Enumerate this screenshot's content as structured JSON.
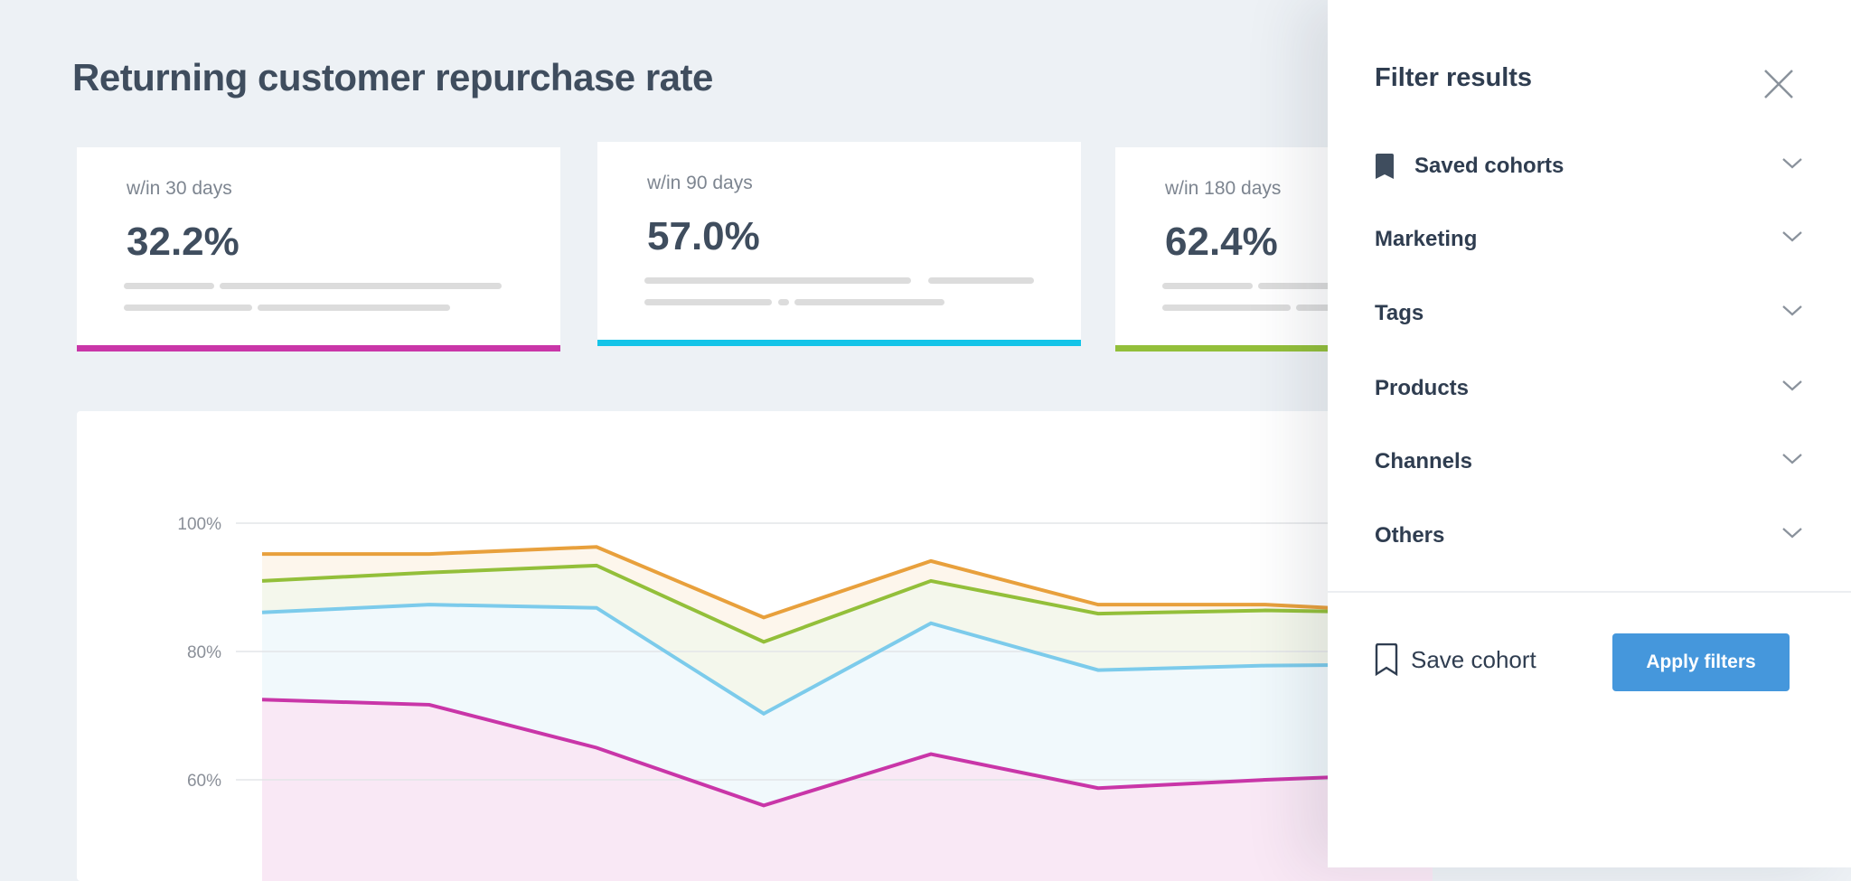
{
  "page": {
    "title": "Returning customer repurchase rate"
  },
  "cards": [
    {
      "label": "w/in 30 days",
      "value": "32.2%",
      "color": "#c936a8"
    },
    {
      "label": "w/in 90 days",
      "value": "57.0%",
      "color": "#14c4e8"
    },
    {
      "label": "w/in 180 days",
      "value": "62.4%",
      "color": "#93bf3a"
    }
  ],
  "chart_data": {
    "type": "area",
    "title": "",
    "xlabel": "",
    "ylabel": "",
    "ylim": [
      40,
      100
    ],
    "yticks": [
      "100%",
      "80%",
      "60%"
    ],
    "ytick_values": [
      100,
      80,
      60
    ],
    "grid": true,
    "series": [
      {
        "color": "#e8a03c",
        "fill": "#fdf6ec",
        "values": [
          95.2,
          95.2,
          96.3,
          85.3,
          94.1,
          87.3,
          87.3,
          86.0
        ]
      },
      {
        "color": "#93bf3a",
        "fill": "#f4f7ec",
        "values": [
          91.0,
          92.3,
          93.4,
          81.5,
          91.0,
          85.9,
          86.4,
          86.0
        ]
      },
      {
        "color": "#7ccbeb",
        "fill": "#f1f9fc",
        "values": [
          86.1,
          87.3,
          86.8,
          70.3,
          84.4,
          77.1,
          77.8,
          78.0
        ]
      },
      {
        "color": "#c936a8",
        "fill": "#f9e8f5",
        "values": [
          72.5,
          71.7,
          65.0,
          56.0,
          64.0,
          58.7,
          60.0,
          61.0
        ]
      }
    ]
  },
  "panel": {
    "title": "Filter results",
    "close_icon": "close-icon",
    "items": [
      {
        "label": "Saved cohorts",
        "icon": "bookmark-filled-icon"
      },
      {
        "label": "Marketing"
      },
      {
        "label": "Tags"
      },
      {
        "label": "Products"
      },
      {
        "label": "Channels"
      },
      {
        "label": "Others"
      }
    ],
    "save_label": "Save cohort",
    "apply_label": "Apply filters",
    "accent": "#4597dc"
  }
}
